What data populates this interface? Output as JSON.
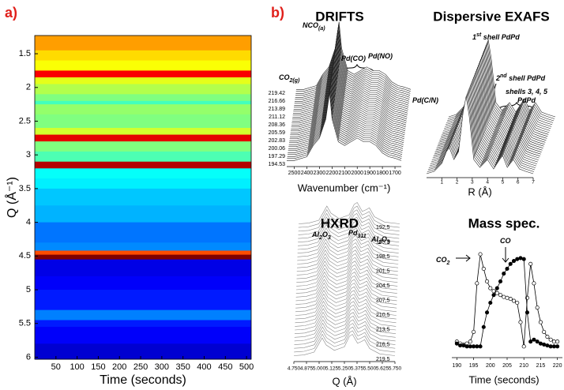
{
  "chart_data": [
    {
      "type": "heatmap",
      "panel_label": "a)",
      "xlabel": "Time (seconds)",
      "ylabel": "Q (Å⁻¹)",
      "xlim": [
        0,
        511
      ],
      "xticks": [
        50,
        100,
        150,
        200,
        250,
        300,
        350,
        400,
        450,
        500
      ],
      "ylim": [
        1.23,
        6.03
      ],
      "yticks": [
        1.5,
        2,
        2.5,
        3,
        3.5,
        4,
        4.5,
        5,
        5.5,
        6
      ],
      "q": [
        1.23,
        1.45,
        1.6,
        1.75,
        1.85,
        1.95,
        2.1,
        2.2,
        2.25,
        2.4,
        2.6,
        2.7,
        2.8,
        2.95,
        3.1,
        3.2,
        3.35,
        3.5,
        3.75,
        4.0,
        4.3,
        4.42,
        4.48,
        4.55,
        4.8,
        5.0,
        5.3,
        5.45,
        5.55,
        5.8
      ],
      "intensity": [
        0.72,
        0.66,
        0.62,
        0.88,
        0.6,
        0.55,
        0.5,
        0.44,
        0.52,
        0.5,
        0.58,
        0.9,
        0.5,
        0.45,
        0.95,
        0.38,
        0.36,
        0.32,
        0.3,
        0.24,
        0.26,
        0.8,
        1.0,
        0.1,
        0.12,
        0.15,
        0.25,
        0.15,
        0.12,
        0.08
      ]
    },
    {
      "type": "waterfall",
      "panel_label": "b)",
      "title": "DRIFTS",
      "xlabel": "Wavenumber (cm⁻¹)",
      "annotations": [
        [
          {
            "t": "NCO"
          },
          {
            "sub": "(a)"
          }
        ],
        [
          {
            "t": "CO"
          },
          {
            "sub": "2(g)"
          }
        ],
        [
          {
            "t": "Pd(CO)"
          }
        ],
        [
          {
            "t": "Pd(NO)"
          }
        ]
      ],
      "xlim": [
        2560,
        1650
      ],
      "xticks": [
        2500,
        2400,
        2300,
        2200,
        2100,
        2000,
        1900,
        1800,
        1700
      ],
      "zticks": [
        219.42,
        216.66,
        213.89,
        211.12,
        208.36,
        205.59,
        202.83,
        200.06,
        197.29,
        194.53
      ],
      "x": [
        2560,
        2500,
        2400,
        2350,
        2300,
        2250,
        2220,
        2200,
        2150,
        2100,
        2050,
        2000,
        1950,
        1900,
        1850,
        1800,
        1750,
        1700,
        1650
      ],
      "values": [
        0.05,
        0.05,
        0.1,
        0.25,
        0.35,
        0.6,
        0.95,
        0.6,
        0.3,
        0.25,
        0.3,
        0.35,
        0.3,
        0.3,
        0.25,
        0.15,
        0.1,
        0.08,
        0.05
      ]
    },
    {
      "type": "waterfall",
      "title": "Dispersive EXAFS",
      "xlabel": "R (Å)",
      "annotations": [
        [
          {
            "t": "1"
          },
          {
            "sup": "st"
          },
          {
            "t": " shell PdPd"
          }
        ],
        [
          {
            "t": "2"
          },
          {
            "sup": "nd"
          },
          {
            "t": " shell PdPd"
          }
        ],
        [
          {
            "t": "shells 3, 4, 5"
          }
        ],
        [
          {
            "t": "PdPd"
          }
        ],
        [
          {
            "t": "Pd(C/N)"
          }
        ]
      ],
      "xlim": [
        0,
        7
      ],
      "xticks": [
        1,
        2,
        3,
        4,
        5,
        6,
        7
      ],
      "x": [
        0,
        0.5,
        1,
        1.3,
        1.5,
        1.8,
        2.1,
        2.4,
        2.6,
        2.8,
        3.1,
        3.5,
        4.0,
        4.4,
        4.8,
        5.0,
        5.3,
        5.7,
        6.1,
        6.5,
        7
      ],
      "values": [
        0.02,
        0.05,
        0.15,
        0.3,
        0.35,
        0.2,
        0.3,
        0.8,
        1.0,
        0.75,
        0.2,
        0.1,
        0.2,
        0.08,
        0.2,
        0.25,
        0.1,
        0.2,
        0.08,
        0.05,
        0.02
      ]
    },
    {
      "type": "waterfall",
      "title": "HXRD",
      "xlabel": "Q (Å)",
      "annotations": [
        [
          {
            "t": "Al"
          },
          {
            "sub": "2"
          },
          {
            "t": "O"
          },
          {
            "sub": "3"
          }
        ],
        [
          {
            "t": "Pd"
          },
          {
            "sub": "311"
          }
        ],
        [
          {
            "t": "Al"
          },
          {
            "sub": "2"
          },
          {
            "t": "O"
          },
          {
            "sub": "3"
          }
        ]
      ],
      "xlim": [
        4.75,
        5.75
      ],
      "xticks": [
        {
          "value": 4.75,
          "label": "4.750"
        },
        {
          "value": 4.875,
          "label": "4.875"
        },
        {
          "value": 5.0,
          "label": "5.000"
        },
        {
          "value": 5.125,
          "label": "5.125"
        },
        {
          "value": 5.25,
          "label": "5.250"
        },
        {
          "value": 5.375,
          "label": "5.375"
        },
        {
          "value": 5.5,
          "label": "5.500"
        },
        {
          "value": 5.625,
          "label": "5.625"
        },
        {
          "value": 5.75,
          "label": "5.750"
        }
      ],
      "zticks": [
        {
          "value": 192.5,
          "label": "192,5"
        },
        {
          "value": 195.5,
          "label": "195,5"
        },
        {
          "value": 198.5,
          "label": "198,5"
        },
        {
          "value": 201.5,
          "label": "201,5"
        },
        {
          "value": 204.5,
          "label": "204,5"
        },
        {
          "value": 207.5,
          "label": "207,5"
        },
        {
          "value": 210.5,
          "label": "210,5"
        },
        {
          "value": 213.5,
          "label": "213,5"
        },
        {
          "value": 216.5,
          "label": "216,5"
        },
        {
          "value": 219.5,
          "label": "219,5"
        }
      ],
      "x": [
        4.75,
        4.85,
        4.95,
        5.0,
        5.03,
        5.07,
        5.15,
        5.25,
        5.3,
        5.33,
        5.38,
        5.42,
        5.45,
        5.5,
        5.6,
        5.75
      ],
      "values": [
        0.1,
        0.12,
        0.2,
        0.45,
        0.6,
        0.4,
        0.25,
        0.35,
        0.65,
        0.7,
        0.45,
        0.5,
        0.55,
        0.3,
        0.15,
        0.1
      ]
    },
    {
      "type": "line",
      "title": "Mass spec.",
      "xlabel": "Time (seconds)",
      "annotations": [
        [
          {
            "t": "CO"
          }
        ],
        [
          {
            "t": "CO"
          },
          {
            "sub": "2"
          }
        ]
      ],
      "xlim": [
        188.5,
        221.5
      ],
      "xticks": [
        190,
        195,
        200,
        205,
        210,
        215,
        220
      ],
      "ylim": [
        0,
        1
      ],
      "x": [
        190,
        191,
        192,
        193,
        194,
        195,
        196,
        197,
        198,
        199,
        200,
        201,
        202,
        203,
        204,
        205,
        206,
        207,
        208,
        209,
        210,
        211,
        212,
        213,
        214,
        215,
        216,
        217,
        218,
        219,
        220
      ],
      "series": [
        {
          "marker": "open",
          "color": "#000000",
          "values": [
            0.1,
            0.08,
            0.07,
            0.08,
            0.1,
            0.2,
            0.7,
            1.0,
            0.85,
            0.72,
            0.65,
            0.62,
            0.6,
            0.58,
            0.56,
            0.55,
            0.54,
            0.52,
            0.5,
            0.3,
            0.05,
            0.55,
            0.9,
            0.7,
            0.45,
            0.3,
            0.2,
            0.15,
            0.12,
            0.1,
            0.1
          ]
        },
        {
          "marker": "filled",
          "color": "#000000",
          "values": [
            0.08,
            0.06,
            0.06,
            0.05,
            0.05,
            0.05,
            0.05,
            0.05,
            0.25,
            0.4,
            0.5,
            0.58,
            0.65,
            0.72,
            0.8,
            0.85,
            0.9,
            0.93,
            0.95,
            0.96,
            0.95,
            0.4,
            0.1,
            0.12,
            0.1,
            0.08,
            0.07,
            0.06,
            0.05,
            0.05,
            0.05
          ]
        }
      ]
    }
  ]
}
